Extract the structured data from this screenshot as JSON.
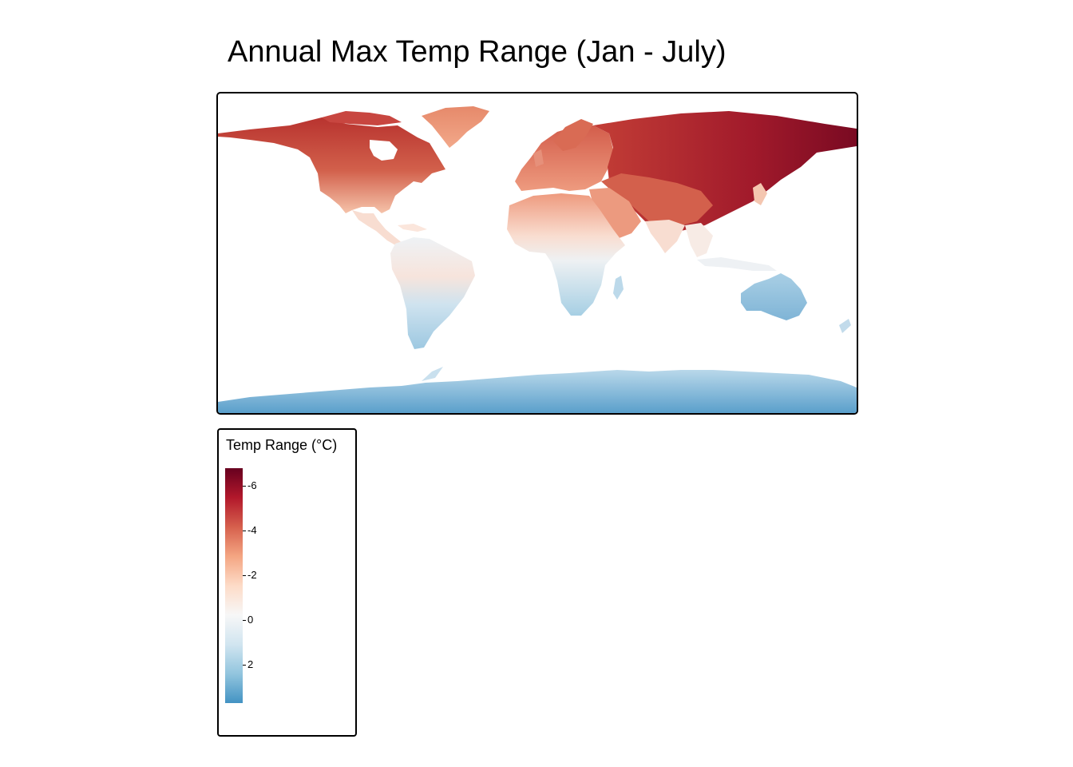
{
  "title": "Annual Max Temp Range (Jan - July)",
  "legend": {
    "title": "Temp Range (°C)",
    "min": -6.8,
    "max": 3.7,
    "ticks": [
      {
        "value": -6,
        "label": "-6"
      },
      {
        "value": -4,
        "label": "-4"
      },
      {
        "value": -2,
        "label": "-2"
      },
      {
        "value": 0,
        "label": "0"
      },
      {
        "value": 2,
        "label": "2"
      }
    ],
    "colors": [
      "#67001f",
      "#b2182b",
      "#d6604d",
      "#f4a582",
      "#fddbc7",
      "#f7f7f7",
      "#d1e5f0",
      "#92c5de",
      "#4393c3"
    ]
  },
  "map": {
    "projection": "equirectangular",
    "regions": [
      {
        "name": "North America",
        "value": -3.5
      },
      {
        "name": "Greenland",
        "value": -2.3
      },
      {
        "name": "Central America",
        "value": -0.5
      },
      {
        "name": "South America north",
        "value": -0.3
      },
      {
        "name": "South America south",
        "value": 1.8
      },
      {
        "name": "Europe",
        "value": -3.0
      },
      {
        "name": "Russia / Siberia",
        "value": -5.5
      },
      {
        "name": "East Siberia",
        "value": -6.5
      },
      {
        "name": "Central Asia",
        "value": -4.0
      },
      {
        "name": "Middle East",
        "value": -2.0
      },
      {
        "name": "North Africa",
        "value": -1.8
      },
      {
        "name": "Central Africa",
        "value": -0.3
      },
      {
        "name": "Southern Africa",
        "value": 1.2
      },
      {
        "name": "South Asia",
        "value": -0.5
      },
      {
        "name": "Southeast Asia",
        "value": 0.1
      },
      {
        "name": "Australia",
        "value": 1.8
      },
      {
        "name": "New Zealand",
        "value": 1.2
      },
      {
        "name": "Antarctica",
        "value": 2.8
      }
    ]
  }
}
